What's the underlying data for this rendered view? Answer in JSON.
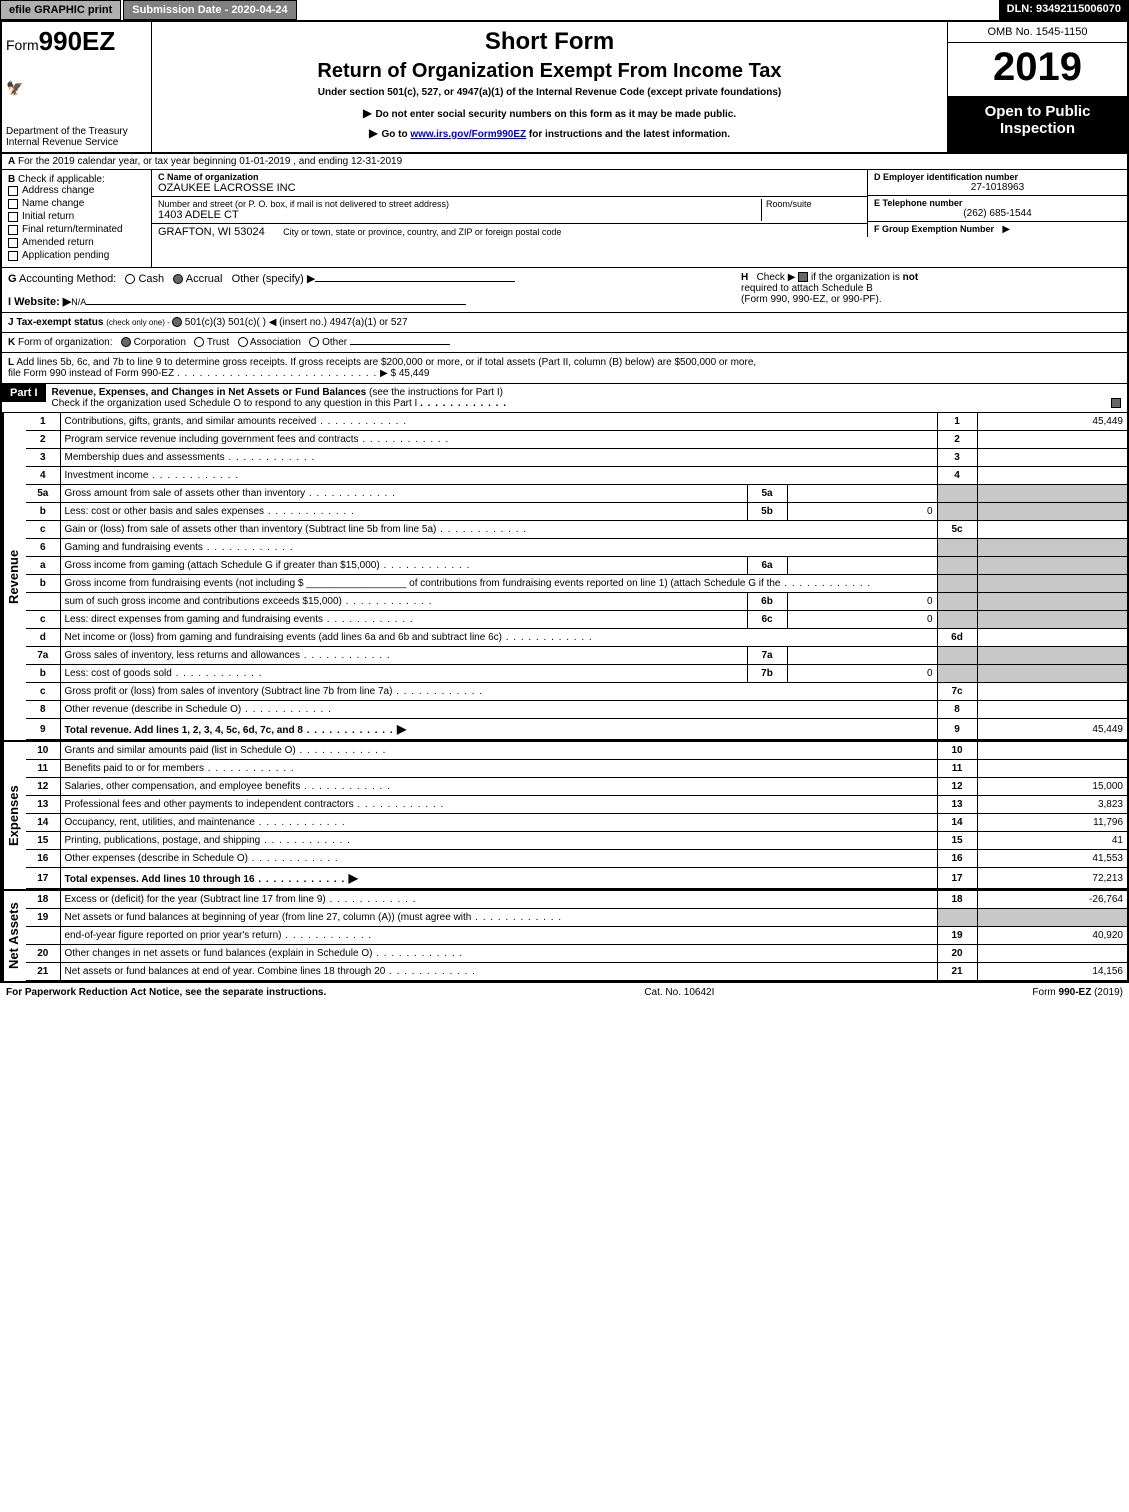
{
  "top_bar": {
    "efile_label": "efile GRAPHIC print",
    "submission_label": "Submission Date - 2020-04-24",
    "dln_label": "DLN: 93492115006070"
  },
  "header": {
    "form_prefix": "Form",
    "form_number": "990EZ",
    "short_form": "Short Form",
    "return_title": "Return of Organization Exempt From Income Tax",
    "section_line": "Under section 501(c), 527, or 4947(a)(1) of the Internal Revenue Code (except private foundations)",
    "warn1": "Do not enter social security numbers on this form as it may be made public.",
    "warn2_pre": "Go to ",
    "warn2_link": "www.irs.gov/Form990EZ",
    "warn2_post": " for instructions and the latest information.",
    "dept1": "Department of the Treasury",
    "dept2": "Internal Revenue Service",
    "omb": "OMB No. 1545-1150",
    "year": "2019",
    "open_public1": "Open to Public",
    "open_public2": "Inspection"
  },
  "section_a": "For the 2019 calendar year, or tax year beginning 01-01-2019        , and ending 12-31-2019",
  "section_a_label": "A",
  "section_b": {
    "label": "B",
    "check_if": "Check if applicable:",
    "opts": [
      "Address change",
      "Name change",
      "Initial return",
      "Final return/terminated",
      "Amended return",
      "Application pending"
    ],
    "c_label": "C",
    "c_name_hdr": "Name of organization",
    "org_name": "OZAUKEE LACROSSE INC",
    "addr_hdr": "Number and street (or P. O. box, if mail is not delivered to street address)",
    "room_hdr": "Room/suite",
    "street": "1403 ADELE CT",
    "city_hdr": "City or town, state or province, country, and ZIP or foreign postal code",
    "city": "GRAFTON, WI  53024",
    "d_label": "D Employer identification number",
    "ein": "27-1018963",
    "e_label": "E Telephone number",
    "phone": "(262) 685-1544",
    "f_label": "F Group Exemption Number",
    "f_arrow": "▶"
  },
  "row_g": {
    "g_label": "G",
    "acct_method": "Accounting Method:",
    "cash": "Cash",
    "accrual": "Accrual",
    "other": "Other (specify) ▶",
    "h_label": "H",
    "h_text_pre": "Check ▶ ",
    "h_text_post": " if the organization is ",
    "h_bold_not": "not",
    "h_line2": "required to attach Schedule B",
    "h_line3": "(Form 990, 990-EZ, or 990-PF)."
  },
  "row_i": {
    "label": "I Website: ▶",
    "value": "N/A"
  },
  "row_j": {
    "label": "J Tax-exempt status",
    "sub": "(check only one) - ",
    "opts": "501(c)(3)    501(c)(  ) ◀ (insert no.)    4947(a)(1) or    527"
  },
  "row_k": {
    "label": "K",
    "text": "Form of organization:",
    "opts": [
      "Corporation",
      "Trust",
      "Association",
      "Other"
    ]
  },
  "row_l": {
    "label": "L",
    "text1": "Add lines 5b, 6c, and 7b to line 9 to determine gross receipts. If gross receipts are $200,000 or more, or if total assets (Part II, column (B) below) are $500,000 or more,",
    "text2": "file Form 990 instead of Form 990-EZ",
    "amount": "$ 45,449",
    "arrow": "▶"
  },
  "part1": {
    "label": "Part I",
    "title": "Revenue, Expenses, and Changes in Net Assets or Fund Balances",
    "sub": "(see the instructions for Part I)",
    "check_line": "Check if the organization used Schedule O to respond to any question in this Part I"
  },
  "side_labels": {
    "revenue": "Revenue",
    "expenses": "Expenses",
    "net_assets": "Net Assets"
  },
  "revenue_lines": [
    {
      "num": "1",
      "desc": "Contributions, gifts, grants, and similar amounts received",
      "right_num": "1",
      "amt": "45,449"
    },
    {
      "num": "2",
      "desc": "Program service revenue including government fees and contracts",
      "right_num": "2",
      "amt": ""
    },
    {
      "num": "3",
      "desc": "Membership dues and assessments",
      "right_num": "3",
      "amt": ""
    },
    {
      "num": "4",
      "desc": "Investment income",
      "right_num": "4",
      "amt": ""
    },
    {
      "num": "5a",
      "desc": "Gross amount from sale of assets other than inventory",
      "sub_num": "5a",
      "sub_amt": "",
      "right_shaded": true
    },
    {
      "num": "b",
      "desc": "Less: cost or other basis and sales expenses",
      "sub_num": "5b",
      "sub_amt": "0",
      "right_shaded": true
    },
    {
      "num": "c",
      "desc": "Gain or (loss) from sale of assets other than inventory (Subtract line 5b from line 5a)",
      "right_num": "5c",
      "amt": ""
    },
    {
      "num": "6",
      "desc": "Gaming and fundraising events",
      "right_shaded": true,
      "no_right_num": true
    },
    {
      "num": "a",
      "desc": "Gross income from gaming (attach Schedule G if greater than $15,000)",
      "sub_num": "6a",
      "sub_amt": "",
      "right_shaded": true
    },
    {
      "num": "b",
      "desc": "Gross income from fundraising events (not including $ __________________ of contributions from fundraising events reported on line 1) (attach Schedule G if the",
      "right_shaded": true,
      "no_sub": true,
      "no_right_num": true
    },
    {
      "num": "",
      "desc": "sum of such gross income and contributions exceeds $15,000)",
      "sub_num": "6b",
      "sub_amt": "0",
      "right_shaded": true
    },
    {
      "num": "c",
      "desc": "Less: direct expenses from gaming and fundraising events",
      "sub_num": "6c",
      "sub_amt": "0",
      "right_shaded": true
    },
    {
      "num": "d",
      "desc": "Net income or (loss) from gaming and fundraising events (add lines 6a and 6b and subtract line 6c)",
      "right_num": "6d",
      "amt": ""
    },
    {
      "num": "7a",
      "desc": "Gross sales of inventory, less returns and allowances",
      "sub_num": "7a",
      "sub_amt": "",
      "right_shaded": true
    },
    {
      "num": "b",
      "desc": "Less: cost of goods sold",
      "sub_num": "7b",
      "sub_amt": "0",
      "right_shaded": true
    },
    {
      "num": "c",
      "desc": "Gross profit or (loss) from sales of inventory (Subtract line 7b from line 7a)",
      "right_num": "7c",
      "amt": ""
    },
    {
      "num": "8",
      "desc": "Other revenue (describe in Schedule O)",
      "right_num": "8",
      "amt": ""
    },
    {
      "num": "9",
      "desc": "Total revenue. Add lines 1, 2, 3, 4, 5c, 6d, 7c, and 8",
      "bold": true,
      "right_num": "9",
      "amt": "45,449",
      "arrow": true
    }
  ],
  "expense_lines": [
    {
      "num": "10",
      "desc": "Grants and similar amounts paid (list in Schedule O)",
      "right_num": "10",
      "amt": ""
    },
    {
      "num": "11",
      "desc": "Benefits paid to or for members",
      "right_num": "11",
      "amt": ""
    },
    {
      "num": "12",
      "desc": "Salaries, other compensation, and employee benefits",
      "right_num": "12",
      "amt": "15,000"
    },
    {
      "num": "13",
      "desc": "Professional fees and other payments to independent contractors",
      "right_num": "13",
      "amt": "3,823"
    },
    {
      "num": "14",
      "desc": "Occupancy, rent, utilities, and maintenance",
      "right_num": "14",
      "amt": "11,796"
    },
    {
      "num": "15",
      "desc": "Printing, publications, postage, and shipping",
      "right_num": "15",
      "amt": "41"
    },
    {
      "num": "16",
      "desc": "Other expenses (describe in Schedule O)",
      "right_num": "16",
      "amt": "41,553"
    },
    {
      "num": "17",
      "desc": "Total expenses. Add lines 10 through 16",
      "bold": true,
      "right_num": "17",
      "amt": "72,213",
      "arrow": true
    }
  ],
  "net_asset_lines": [
    {
      "num": "18",
      "desc": "Excess or (deficit) for the year (Subtract line 17 from line 9)",
      "right_num": "18",
      "amt": "-26,764"
    },
    {
      "num": "19",
      "desc": "Net assets or fund balances at beginning of year (from line 27, column (A)) (must agree with",
      "right_shaded": true,
      "no_right_num": true
    },
    {
      "num": "",
      "desc": "end-of-year figure reported on prior year's return)",
      "right_num": "19",
      "amt": "40,920"
    },
    {
      "num": "20",
      "desc": "Other changes in net assets or fund balances (explain in Schedule O)",
      "right_num": "20",
      "amt": ""
    },
    {
      "num": "21",
      "desc": "Net assets or fund balances at end of year. Combine lines 18 through 20",
      "right_num": "21",
      "amt": "14,156"
    }
  ],
  "footer": {
    "left": "For Paperwork Reduction Act Notice, see the separate instructions.",
    "center": "Cat. No. 10642I",
    "right": "Form 990-EZ (2019)",
    "right_bold": "990-EZ"
  },
  "colors": {
    "black": "#000000",
    "white": "#ffffff",
    "btn_gray": "#b0b0b0",
    "shaded": "#c8c8c8",
    "link": "#0000cc"
  }
}
